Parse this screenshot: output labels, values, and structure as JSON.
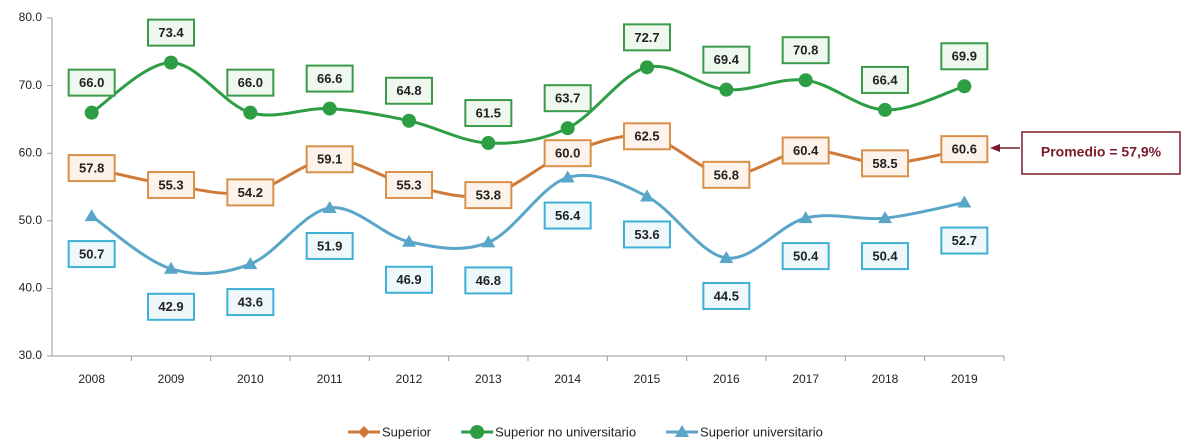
{
  "chart_data": {
    "type": "line",
    "categories": [
      "2008",
      "2009",
      "2010",
      "2011",
      "2012",
      "2013",
      "2014",
      "2015",
      "2016",
      "2017",
      "2018",
      "2019"
    ],
    "series": [
      {
        "name": "Superior",
        "color": "#d07a3a",
        "marker": "diamond",
        "label_box": "#d8914a",
        "label_fill": "#fdf3ea",
        "values": [
          57.8,
          55.3,
          54.2,
          59.1,
          55.3,
          53.8,
          60.0,
          62.5,
          56.8,
          60.4,
          58.5,
          60.6
        ],
        "value_labels": [
          "57.8",
          "55.3",
          "54.2",
          "59.1",
          "55.3",
          "53.8",
          "60.0",
          "62.5",
          "56.8",
          "60.4",
          "58.5",
          "60.6"
        ]
      },
      {
        "name": "Superior no universitario",
        "color": "#2e9e44",
        "marker": "circle",
        "label_box": "#3a9a4a",
        "label_fill": "#eef8ef",
        "values": [
          66.0,
          73.4,
          66.0,
          66.6,
          64.8,
          61.5,
          63.7,
          72.7,
          69.4,
          70.8,
          66.4,
          69.9
        ],
        "value_labels": [
          "66.0",
          "73.4",
          "66.0",
          "66.6",
          "64.8",
          "61.5",
          "63.7",
          "72.7",
          "69.4",
          "70.8",
          "66.4",
          "69.9"
        ]
      },
      {
        "name": "Superior universitario",
        "color": "#5aa6c8",
        "marker": "triangle",
        "label_box": "#3fb0d6",
        "label_fill": "#eef8fb",
        "values": [
          50.7,
          42.9,
          43.6,
          51.9,
          46.9,
          46.8,
          56.4,
          53.6,
          44.5,
          50.4,
          50.4,
          52.7
        ],
        "value_labels": [
          "50.7",
          "42.9",
          "43.6",
          "51.9",
          "46.9",
          "46.8",
          "56.4",
          "53.6",
          "44.5",
          "50.4",
          "50.4",
          "52.7"
        ]
      }
    ],
    "ylim": [
      30,
      80
    ],
    "yticks": [
      {
        "value": 30,
        "label": "30.0"
      },
      {
        "value": 40,
        "label": "40.0"
      },
      {
        "value": 50,
        "label": "50.0"
      },
      {
        "value": 60,
        "label": "60.0"
      },
      {
        "value": 70,
        "label": "70.0"
      },
      {
        "value": 80,
        "label": "80.0"
      }
    ],
    "annotation": "Promedio = 57,9%"
  }
}
